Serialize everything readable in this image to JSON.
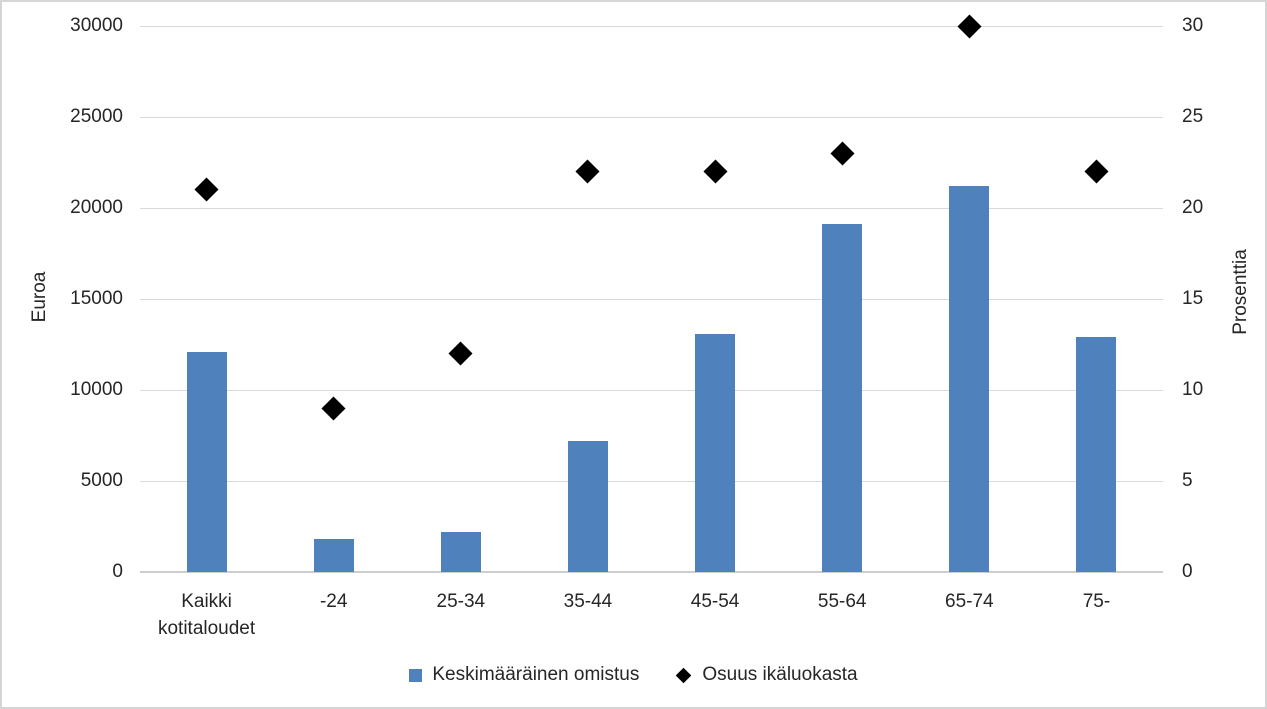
{
  "chart_data": {
    "type": "combo-bar-scatter",
    "title": "",
    "categories": [
      "Kaikki kotitaloudet",
      "-24",
      "25-34",
      "35-44",
      "45-54",
      "55-64",
      "65-74",
      "75-"
    ],
    "series": [
      {
        "name": "Keskimääräinen omistus",
        "type": "bar",
        "axis": "left",
        "color": "#4F81BD",
        "values": [
          12100,
          1800,
          2200,
          7200,
          13100,
          19100,
          21200,
          12900
        ]
      },
      {
        "name": "Osuus ikäluokasta",
        "type": "scatter",
        "marker": "diamond",
        "axis": "right",
        "color": "#000000",
        "values": [
          21,
          9,
          12,
          22,
          22,
          23,
          30,
          22
        ]
      }
    ],
    "left_axis": {
      "label": "Euroa",
      "min": 0,
      "max": 30000,
      "step": 5000,
      "ticks": [
        0,
        5000,
        10000,
        15000,
        20000,
        25000,
        30000
      ]
    },
    "right_axis": {
      "label": "Prosenttia",
      "min": 0,
      "max": 30,
      "step": 5,
      "ticks": [
        0,
        5,
        10,
        15,
        20,
        25,
        30
      ]
    },
    "grid": true,
    "legend_position": "bottom",
    "colors": {
      "gridline": "#d9d9d9",
      "axis_line": "#cdcdcd",
      "text": "#262626"
    }
  }
}
